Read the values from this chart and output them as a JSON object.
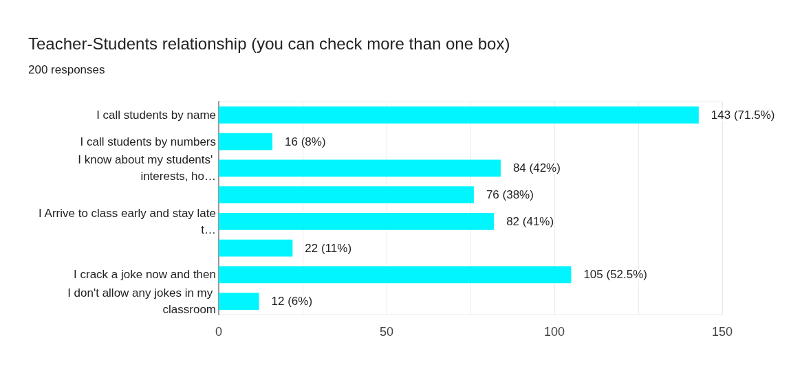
{
  "chart_data": {
    "type": "bar",
    "orientation": "horizontal",
    "title": "Teacher-Students relationship (you can check more than one box)",
    "subtitle": "200 responses",
    "categories": [
      "I call students by name",
      "I call students by numbers",
      "I know about my students' interests, ho…",
      null,
      "I Arrive to class early and stay late t…",
      null,
      "I crack a joke now and then",
      "I don't allow any jokes in my classroom"
    ],
    "values": [
      143,
      16,
      84,
      76,
      82,
      22,
      105,
      12
    ],
    "value_labels": [
      "143 (71.5%)",
      "16 (8%)",
      "84 (42%)",
      "76 (38%)",
      "82 (41%)",
      "22 (11%)",
      "105 (52.5%)",
      "12 (6%)"
    ],
    "color": "#00f5ff",
    "xlim": [
      0,
      150
    ],
    "xticks": [
      0,
      {
        "value": 25,
        "label": null
      },
      50,
      {
        "value": 75,
        "label": null
      },
      100,
      {
        "value": 125,
        "label": null
      },
      150
    ],
    "grid": true
  }
}
